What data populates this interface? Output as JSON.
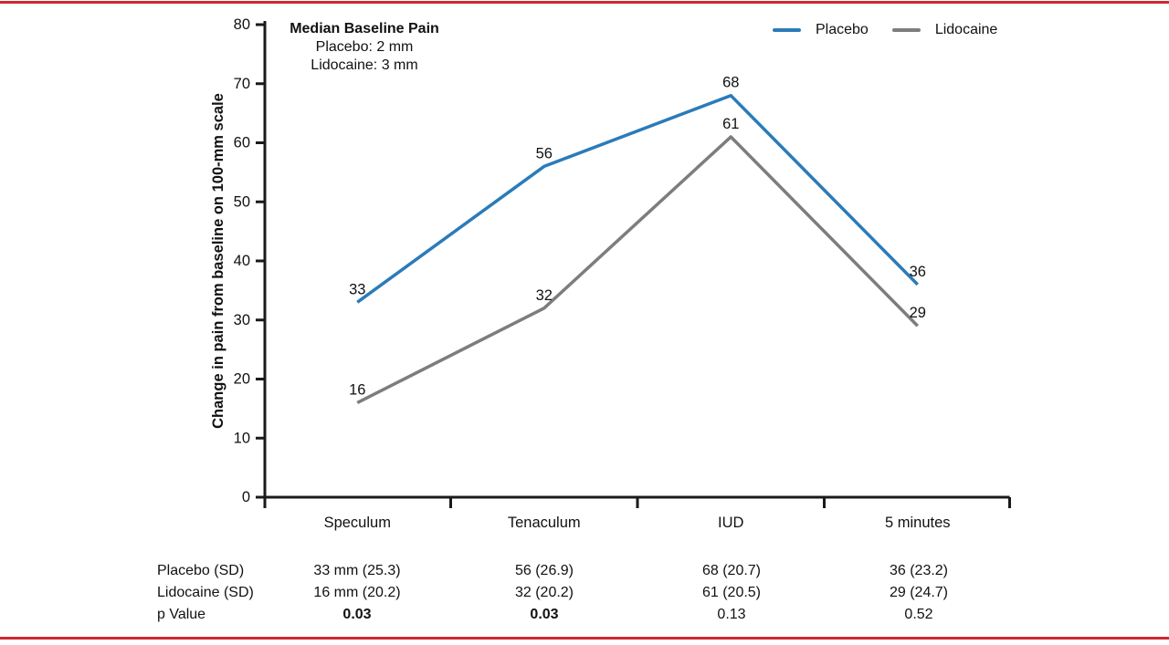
{
  "frame": {
    "rule_color": "#ce2931"
  },
  "chart_data": {
    "type": "line",
    "categories": [
      "Speculum",
      "Tenaculum",
      "IUD",
      "5 minutes"
    ],
    "series": [
      {
        "name": "Placebo",
        "color": "#2b7bb9",
        "values": [
          33,
          56,
          68,
          36
        ]
      },
      {
        "name": "Lidocaine",
        "color": "#7d7d7d",
        "values": [
          16,
          32,
          61,
          29
        ]
      }
    ],
    "title": "",
    "xlabel": "",
    "ylabel": "Change in pain from baseline on 100-mm scale",
    "ylim": [
      0,
      80
    ],
    "ytick_step": 10,
    "grid": false,
    "legend_position": "top-right",
    "point_labels": true,
    "annotation": {
      "title": "Median Baseline Pain",
      "lines": [
        "Placebo: 2 mm",
        "Lidocaine: 3 mm"
      ]
    }
  },
  "table": {
    "rows": [
      {
        "label": "Placebo (SD)",
        "values": [
          "33 mm (25.3)",
          "56 (26.9)",
          "68 (20.7)",
          "36 (23.2)"
        ],
        "bold": [
          false,
          false,
          false,
          false
        ]
      },
      {
        "label": "Lidocaine (SD)",
        "values": [
          "16 mm (20.2)",
          "32 (20.2)",
          "61 (20.5)",
          "29 (24.7)"
        ],
        "bold": [
          false,
          false,
          false,
          false
        ]
      },
      {
        "label": "p Value",
        "values": [
          "0.03",
          "0.03",
          "0.13",
          "0.52"
        ],
        "bold": [
          true,
          true,
          false,
          false
        ]
      }
    ]
  }
}
